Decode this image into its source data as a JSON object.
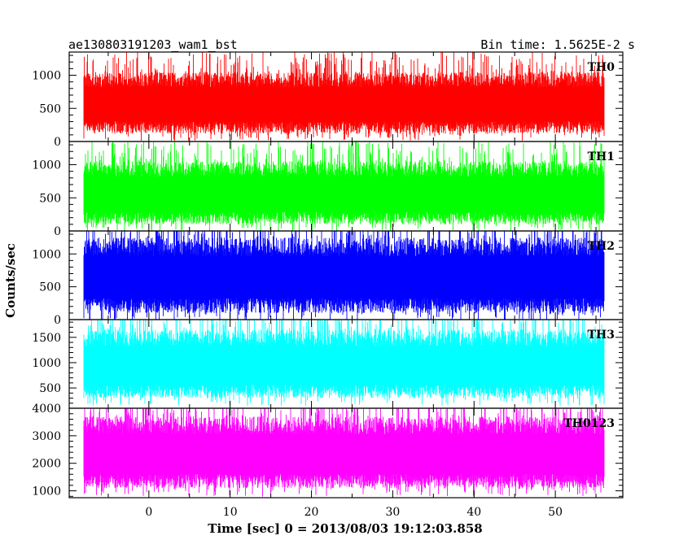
{
  "chart_data": {
    "type": "line",
    "title_left": "ae130803191203_wam1_bst",
    "title_right": "Bin time: 1.5625E-2 s",
    "xlabel": "Time [sec] 0 = 2013/08/03 19:12:03.858",
    "ylabel": "Counts/sec",
    "xlim": [
      -9.8,
      58.3
    ],
    "x_data_range": [
      -8.0,
      56.0
    ],
    "x_ticks": [
      0,
      10,
      20,
      30,
      40,
      50
    ],
    "x_tick_labels": [
      "0",
      "10",
      "20",
      "30",
      "40",
      "50"
    ],
    "grid": false,
    "panels": [
      {
        "name": "TH0",
        "color": "#ff0000",
        "ylim": [
          0,
          1350
        ],
        "y_ticks": [
          0,
          500,
          1000
        ],
        "y_tick_labels": [
          "0",
          "500",
          "1000"
        ],
        "typical_min": 120,
        "typical_max": 1050,
        "mean": 570
      },
      {
        "name": "TH1",
        "color": "#00ff00",
        "ylim": [
          0,
          1350
        ],
        "y_ticks": [
          0,
          500,
          1000
        ],
        "y_tick_labels": [
          "0",
          "500",
          "1000"
        ],
        "typical_min": 100,
        "typical_max": 1050,
        "mean": 550
      },
      {
        "name": "TH2",
        "color": "#0000ff",
        "ylim": [
          0,
          1350
        ],
        "y_ticks": [
          0,
          500,
          1000
        ],
        "y_tick_labels": [
          "0",
          "500",
          "1000"
        ],
        "typical_min": 100,
        "typical_max": 1250,
        "mean": 620
      },
      {
        "name": "TH3",
        "color": "#00ffff",
        "ylim": [
          100,
          1850
        ],
        "y_ticks": [
          500,
          1000,
          1500
        ],
        "y_tick_labels": [
          "500",
          "1000",
          "1500"
        ],
        "typical_min": 300,
        "typical_max": 1650,
        "mean": 960
      },
      {
        "name": "TH0123",
        "color": "#ff00ff",
        "ylim": [
          750,
          4000
        ],
        "y_ticks": [
          1000,
          2000,
          3000,
          4000
        ],
        "y_tick_labels": [
          "1000",
          "2000",
          "3000",
          "4000"
        ],
        "typical_min": 1100,
        "typical_max": 3700,
        "mean": 2450
      }
    ]
  }
}
